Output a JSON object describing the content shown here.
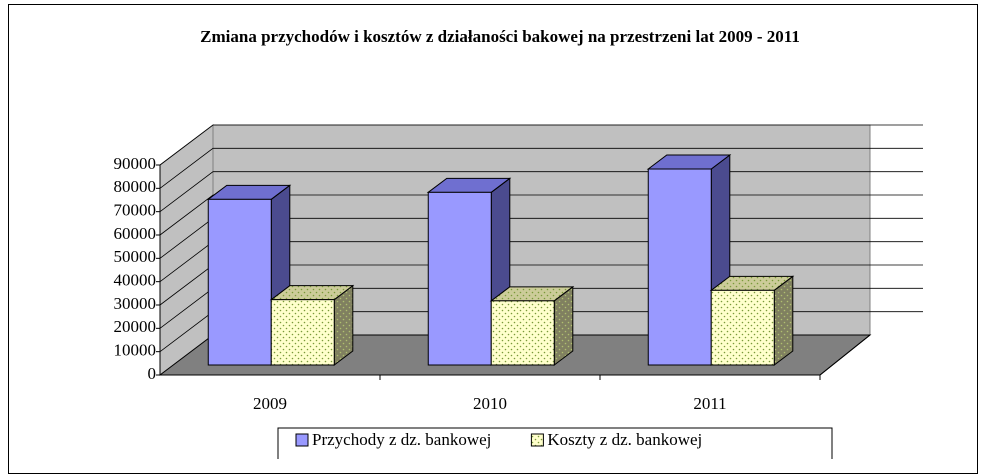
{
  "chart_data": {
    "type": "bar3d",
    "title": "Zmiana przychodów i kosztów z działaności bakowej na przestrzeni lat 2009 - 2011",
    "categories": [
      "2009",
      "2010",
      "2011"
    ],
    "series": [
      {
        "name": "Przychody z dz. bankowej",
        "color": "#9999ff",
        "values": [
          71000,
          74000,
          84000
        ]
      },
      {
        "name": "Koszty z dz. bankowej",
        "color": "#ffffcc",
        "values": [
          28000,
          27500,
          32000
        ]
      }
    ],
    "ylim": [
      0,
      90000
    ],
    "yticks": [
      0,
      10000,
      20000,
      30000,
      40000,
      50000,
      60000,
      70000,
      80000,
      90000
    ],
    "grid": true,
    "legend": "bottom"
  }
}
